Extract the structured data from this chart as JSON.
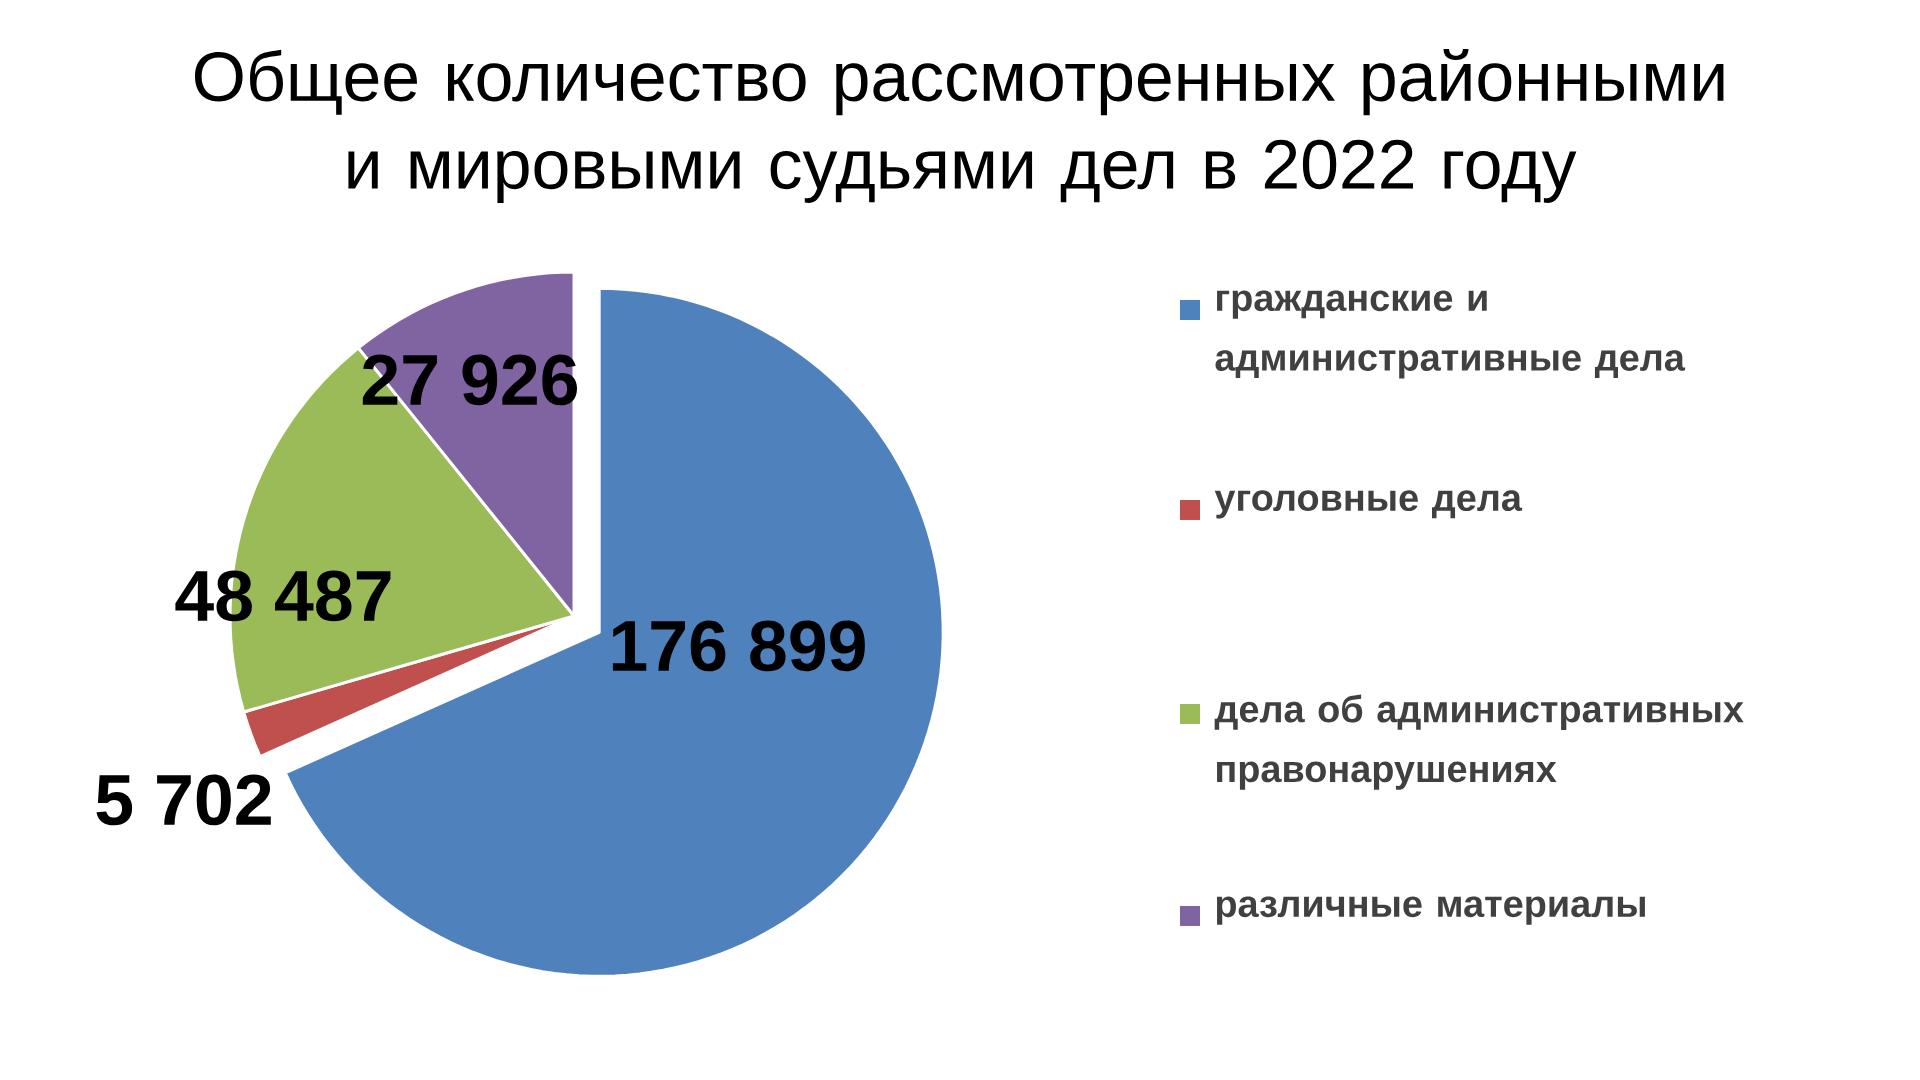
{
  "chart_data": {
    "type": "pie",
    "title": "Общее количество рассмотренных районными и мировыми судьями дел в 2022 году",
    "categories": [
      "гражданские и административные дела",
      "уголовные дела",
      "дела об административных правонарушениях",
      "различные материалы"
    ],
    "values": [
      176899,
      5702,
      48487,
      27926
    ],
    "colors": [
      "#4f81bd",
      "#c0504d",
      "#9bbb59",
      "#8064a2"
    ],
    "value_labels": [
      "176 899",
      "5 702",
      "48 487",
      "27 926"
    ],
    "legend": "right"
  }
}
